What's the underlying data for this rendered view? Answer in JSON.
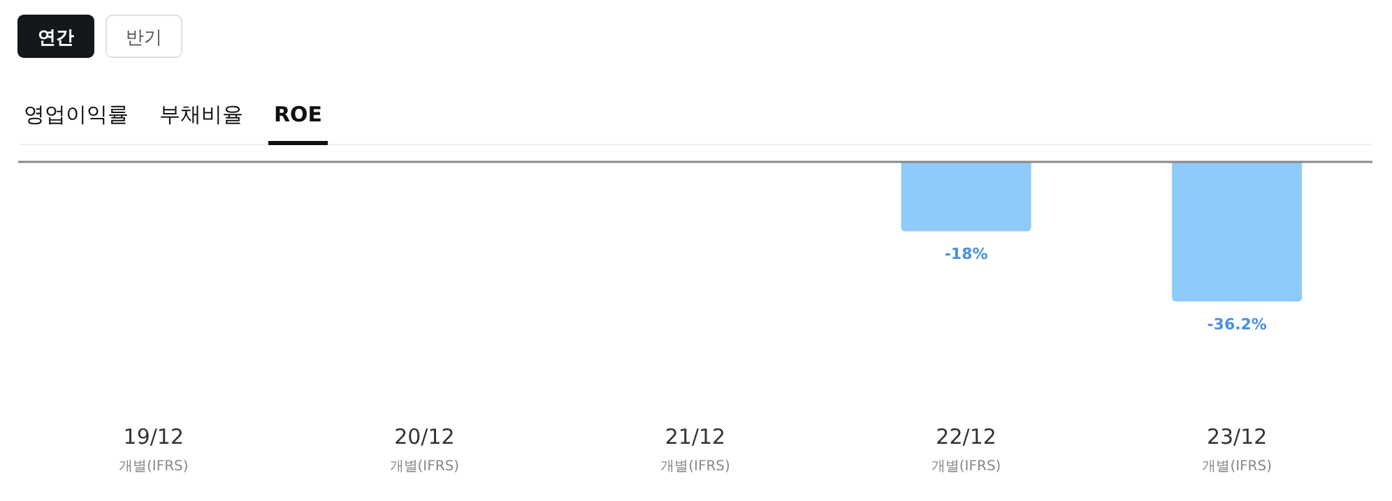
{
  "chart_data": {
    "type": "bar",
    "categories": [
      "19/12\n개별(IFRS)",
      "20/12\n개별(IFRS)",
      "21/12\n개별(IFRS)",
      "22/12\n개별(IFRS)",
      "23/12\n개별(IFRS)"
    ],
    "values": [
      null,
      null,
      null,
      -18,
      -36.2
    ],
    "value_labels": [
      null,
      null,
      null,
      "-18%",
      "-36.2%"
    ],
    "color": "#90caf9",
    "annotations": [
      "연간",
      "반기",
      "영업이익률",
      "부채비율",
      "ROE"
    ]
  }
}
